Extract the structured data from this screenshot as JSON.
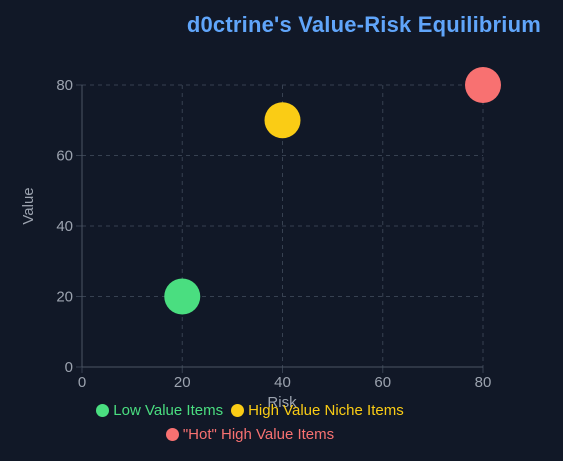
{
  "chart_data": {
    "type": "scatter",
    "title": "d0ctrine's Value-Risk Equilibrium",
    "xlabel": "Risk",
    "ylabel": "Value",
    "xlim": [
      0,
      80
    ],
    "ylim": [
      0,
      80
    ],
    "xticks": [
      "0",
      "20",
      "40",
      "60",
      "80"
    ],
    "yticks": [
      "0",
      "20",
      "40",
      "60",
      "80"
    ],
    "grid": true,
    "grid_style": "dashed",
    "legend_position": "bottom",
    "series": [
      {
        "name": "Low Value Items",
        "color": "#4ade80",
        "points": [
          {
            "x": 20,
            "y": 20
          }
        ]
      },
      {
        "name": "High Value Niche Items",
        "color": "#facc15",
        "points": [
          {
            "x": 40,
            "y": 70
          }
        ]
      },
      {
        "name": "\"Hot\" High Value Items",
        "color": "#f87171",
        "points": [
          {
            "x": 80,
            "y": 80
          }
        ]
      }
    ]
  },
  "colors": {
    "background": "#111827",
    "title": "#60a5fa",
    "axis_text": "#9ca3af",
    "grid": "#374151"
  }
}
